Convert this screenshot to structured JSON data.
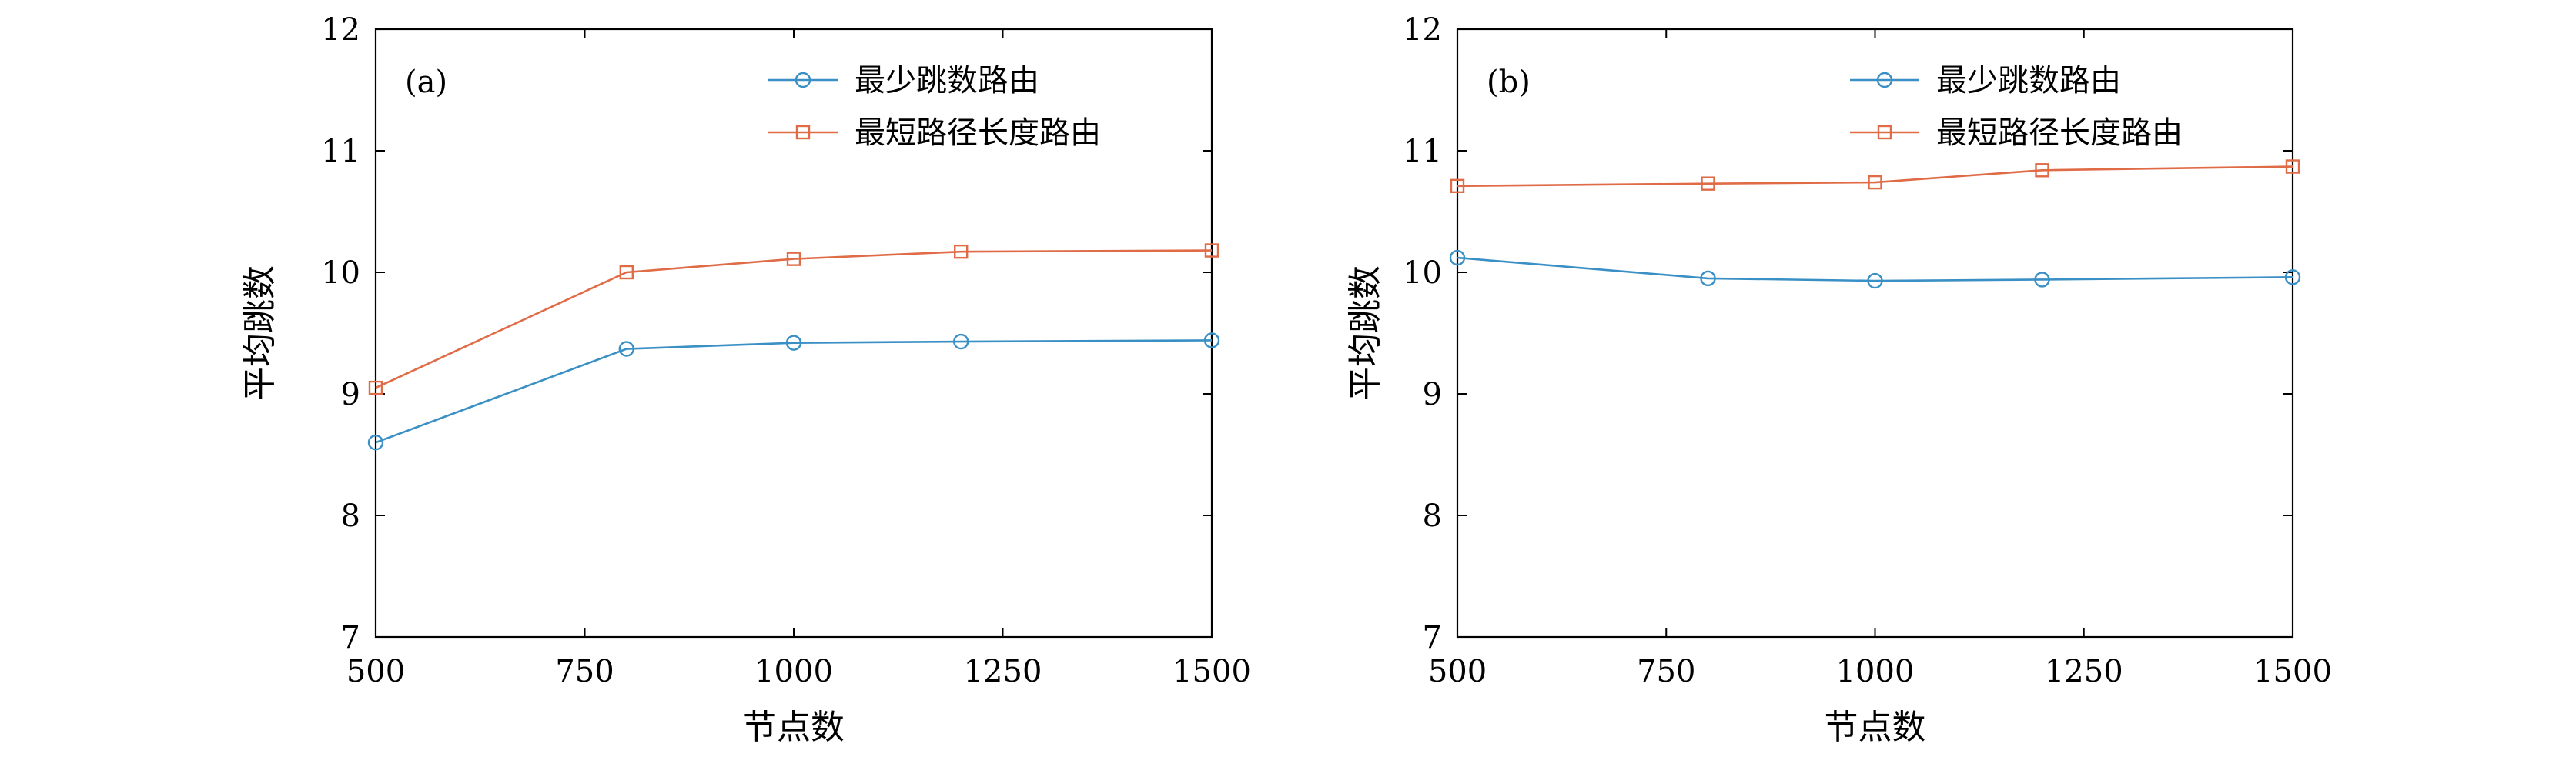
{
  "colors": {
    "series_blue": "#3a8fc5",
    "series_orange": "#df6b47"
  },
  "chart_data": [
    {
      "type": "line",
      "panel_label": "(a)",
      "xlabel": "节点数",
      "ylabel": "平均跳数",
      "xlim": [
        500,
        1500
      ],
      "ylim": [
        7,
        12
      ],
      "xticks": [
        500,
        750,
        1000,
        1250,
        1500
      ],
      "yticks": [
        7,
        8,
        9,
        10,
        11,
        12
      ],
      "legend_position": "top-right",
      "series": [
        {
          "name": "最少跳数路由",
          "marker": "circle",
          "color": "#3a8fc5",
          "x": [
            500,
            800,
            1000,
            1200,
            1500
          ],
          "y": [
            8.6,
            9.37,
            9.42,
            9.43,
            9.44
          ]
        },
        {
          "name": "最短路径长度路由",
          "marker": "square",
          "color": "#df6b47",
          "x": [
            500,
            800,
            1000,
            1200,
            1500
          ],
          "y": [
            9.05,
            10.0,
            10.11,
            10.17,
            10.18
          ]
        }
      ]
    },
    {
      "type": "line",
      "panel_label": "(b)",
      "xlabel": "节点数",
      "ylabel": "平均跳数",
      "xlim": [
        500,
        1500
      ],
      "ylim": [
        7,
        12
      ],
      "xticks": [
        500,
        750,
        1000,
        1250,
        1500
      ],
      "yticks": [
        7,
        8,
        9,
        10,
        11,
        12
      ],
      "legend_position": "top-right",
      "series": [
        {
          "name": "最少跳数路由",
          "marker": "circle",
          "color": "#3a8fc5",
          "x": [
            500,
            800,
            1000,
            1200,
            1500
          ],
          "y": [
            10.12,
            9.95,
            9.93,
            9.94,
            9.96
          ]
        },
        {
          "name": "最短路径长度路由",
          "marker": "square",
          "color": "#df6b47",
          "x": [
            500,
            800,
            1000,
            1200,
            1500
          ],
          "y": [
            10.71,
            10.73,
            10.74,
            10.84,
            10.87
          ]
        }
      ]
    }
  ]
}
